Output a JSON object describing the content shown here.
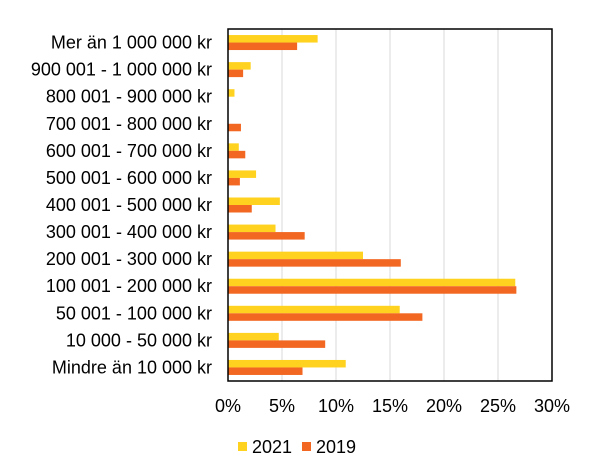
{
  "chart_data": {
    "type": "bar",
    "orientation": "horizontal",
    "categories": [
      "Mer än 1 000 000 kr",
      "900 001 - 1 000 000 kr",
      "800 001 - 900 000 kr",
      "700 001 - 800 000 kr",
      "600 001 - 700 000 kr",
      "500 001 - 600 000 kr",
      "400 001 - 500 000 kr",
      "300 001 - 400 000 kr",
      "200 001 - 300 000 kr",
      "100 001 - 200 000 kr",
      "50 001 - 100 000 kr",
      "10 000 - 50 000 kr",
      "Mindre än 10 000 kr"
    ],
    "series": [
      {
        "name": "2021",
        "color": "#FFD21F",
        "values": [
          8.3,
          2.1,
          0.6,
          0.0,
          1.0,
          2.6,
          4.8,
          4.4,
          12.5,
          26.6,
          15.9,
          4.7,
          10.9
        ]
      },
      {
        "name": "2019",
        "color": "#F26722",
        "values": [
          6.4,
          1.4,
          0.0,
          1.2,
          1.6,
          1.1,
          2.2,
          7.1,
          16.0,
          26.7,
          18.0,
          9.0,
          6.9
        ]
      }
    ],
    "xlim": [
      0,
      30
    ],
    "x_ticks": [
      "0%",
      "5%",
      "10%",
      "15%",
      "20%",
      "25%",
      "30%"
    ],
    "grid": "vertical",
    "legend": "bottom"
  }
}
